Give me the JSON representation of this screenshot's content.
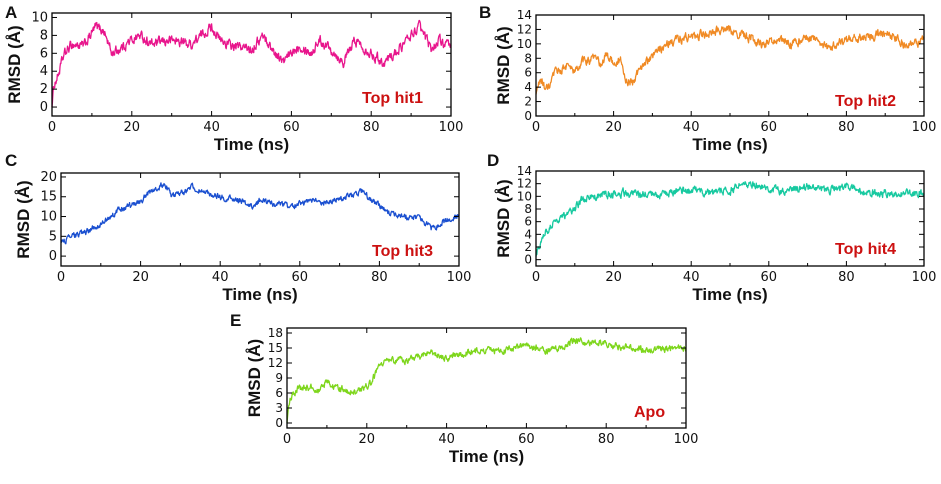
{
  "chart_data": [
    {
      "panel": "A",
      "type": "line",
      "series_label": "Top hit1",
      "color": "#e8158c",
      "label_color": "#cc1111",
      "xlabel": "Time (ns)",
      "ylabel": "RMSD (Å)",
      "xlim": [
        0,
        100
      ],
      "ylim": [
        -1,
        10.5
      ],
      "xticks": [
        0,
        20,
        40,
        60,
        80,
        100
      ],
      "yticks": [
        0,
        2,
        4,
        6,
        8,
        10
      ],
      "keypoints": [
        [
          0,
          0
        ],
        [
          0.5,
          2.5
        ],
        [
          1.5,
          3.5
        ],
        [
          3,
          5.8
        ],
        [
          5,
          7
        ],
        [
          8,
          6.8
        ],
        [
          11,
          9
        ],
        [
          13,
          8.5
        ],
        [
          15,
          6
        ],
        [
          17,
          6.5
        ],
        [
          20,
          7.5
        ],
        [
          22,
          8
        ],
        [
          25,
          7
        ],
        [
          30,
          7.5
        ],
        [
          35,
          7
        ],
        [
          40,
          9
        ],
        [
          42,
          7.5
        ],
        [
          45,
          6.8
        ],
        [
          50,
          6.5
        ],
        [
          53,
          8
        ],
        [
          55,
          6.5
        ],
        [
          58,
          5
        ],
        [
          62,
          7
        ],
        [
          65,
          6
        ],
        [
          67,
          7.5
        ],
        [
          70,
          6.5
        ],
        [
          73,
          5
        ],
        [
          76,
          7.5
        ],
        [
          80,
          6
        ],
        [
          83,
          5
        ],
        [
          86,
          6
        ],
        [
          90,
          8
        ],
        [
          92,
          9
        ],
        [
          95,
          6.5
        ],
        [
          97,
          7.5
        ],
        [
          100,
          6.5
        ]
      ],
      "noise": 0.45
    },
    {
      "panel": "B",
      "type": "line",
      "series_label": "Top hit2",
      "color": "#f08a24",
      "label_color": "#cc1111",
      "xlabel": "Time (ns)",
      "ylabel": "RMSD (Å)",
      "xlim": [
        0,
        100
      ],
      "ylim": [
        0,
        14
      ],
      "xticks": [
        0,
        20,
        40,
        60,
        80,
        100
      ],
      "yticks": [
        0,
        2,
        4,
        6,
        8,
        10,
        12,
        14
      ],
      "keypoints": [
        [
          0,
          3
        ],
        [
          1,
          5
        ],
        [
          3,
          3.5
        ],
        [
          5,
          6
        ],
        [
          8,
          7
        ],
        [
          10,
          6
        ],
        [
          12,
          7.5
        ],
        [
          15,
          8
        ],
        [
          17,
          7
        ],
        [
          18,
          8.5
        ],
        [
          20,
          7.5
        ],
        [
          22,
          7.5
        ],
        [
          23,
          5
        ],
        [
          25,
          4.5
        ],
        [
          27,
          7
        ],
        [
          30,
          8
        ],
        [
          33,
          10
        ],
        [
          36,
          10.5
        ],
        [
          40,
          11
        ],
        [
          45,
          11.5
        ],
        [
          50,
          12
        ],
        [
          54,
          11
        ],
        [
          58,
          10
        ],
        [
          62,
          10.5
        ],
        [
          66,
          10
        ],
        [
          72,
          11
        ],
        [
          75,
          9.5
        ],
        [
          80,
          10.5
        ],
        [
          85,
          11
        ],
        [
          90,
          11.5
        ],
        [
          95,
          10
        ],
        [
          100,
          10.5
        ]
      ],
      "noise": 0.5
    },
    {
      "panel": "C",
      "type": "line",
      "series_label": "Top hit3",
      "color": "#1a4fd0",
      "label_color": "#cc1111",
      "xlabel": "Time (ns)",
      "ylabel": "RMSD (Å)",
      "xlim": [
        0,
        100
      ],
      "ylim": [
        -2.5,
        21
      ],
      "xticks": [
        0,
        20,
        40,
        60,
        80,
        100
      ],
      "yticks": [
        0,
        5,
        10,
        15,
        20
      ],
      "keypoints": [
        [
          0,
          3.5
        ],
        [
          3,
          5
        ],
        [
          6,
          6
        ],
        [
          10,
          8
        ],
        [
          15,
          12
        ],
        [
          20,
          14
        ],
        [
          24,
          17.5
        ],
        [
          26,
          18
        ],
        [
          28,
          15
        ],
        [
          30,
          16
        ],
        [
          33,
          17.5
        ],
        [
          36,
          16
        ],
        [
          40,
          15
        ],
        [
          45,
          14
        ],
        [
          48,
          12.5
        ],
        [
          50,
          14
        ],
        [
          55,
          13
        ],
        [
          58,
          12.5
        ],
        [
          62,
          14
        ],
        [
          65,
          13.5
        ],
        [
          70,
          14.5
        ],
        [
          74,
          15.5
        ],
        [
          76,
          16.5
        ],
        [
          78,
          14
        ],
        [
          82,
          11
        ],
        [
          86,
          10
        ],
        [
          90,
          9.5
        ],
        [
          93,
          7
        ],
        [
          95,
          8
        ],
        [
          97,
          9
        ],
        [
          100,
          10
        ]
      ],
      "noise": 0.6
    },
    {
      "panel": "D",
      "type": "line",
      "series_label": "Top hit4",
      "color": "#17c9a0",
      "label_color": "#cc1111",
      "xlabel": "Time (ns)",
      "ylabel": "RMSD (Å)",
      "xlim": [
        0,
        100
      ],
      "ylim": [
        -1,
        14
      ],
      "xticks": [
        0,
        20,
        40,
        60,
        80,
        100
      ],
      "yticks": [
        0,
        2,
        4,
        6,
        8,
        10,
        12,
        14
      ],
      "keypoints": [
        [
          0,
          0.5
        ],
        [
          0.5,
          2
        ],
        [
          2,
          4
        ],
        [
          4,
          5.5
        ],
        [
          6,
          6.5
        ],
        [
          8,
          7
        ],
        [
          10,
          8
        ],
        [
          12,
          9.5
        ],
        [
          15,
          10
        ],
        [
          20,
          10.5
        ],
        [
          25,
          10.5
        ],
        [
          30,
          10
        ],
        [
          35,
          10.5
        ],
        [
          40,
          11
        ],
        [
          45,
          10.5
        ],
        [
          50,
          11
        ],
        [
          55,
          12
        ],
        [
          60,
          11
        ],
        [
          65,
          11
        ],
        [
          70,
          11.5
        ],
        [
          75,
          11
        ],
        [
          80,
          11.5
        ],
        [
          85,
          10.5
        ],
        [
          90,
          10.5
        ],
        [
          95,
          10.5
        ],
        [
          100,
          10.5
        ]
      ],
      "noise": 0.5
    },
    {
      "panel": "E",
      "type": "line",
      "series_label": "Apo",
      "color": "#7ed61c",
      "label_color": "#cc1111",
      "xlabel": "Time (ns)",
      "ylabel": "RMSD (Å)",
      "xlim": [
        0,
        100
      ],
      "ylim": [
        -1,
        19
      ],
      "xticks": [
        0,
        20,
        40,
        60,
        80,
        100
      ],
      "yticks": [
        0,
        3,
        6,
        9,
        12,
        15,
        18
      ],
      "keypoints": [
        [
          0,
          0
        ],
        [
          0.5,
          4
        ],
        [
          1.5,
          6
        ],
        [
          3,
          7
        ],
        [
          6,
          7
        ],
        [
          8,
          6.5
        ],
        [
          10,
          8.5
        ],
        [
          12,
          7
        ],
        [
          15,
          6.5
        ],
        [
          17,
          6
        ],
        [
          19,
          7
        ],
        [
          21,
          8
        ],
        [
          23,
          11.5
        ],
        [
          25,
          12.5
        ],
        [
          30,
          12.5
        ],
        [
          35,
          14
        ],
        [
          40,
          13
        ],
        [
          45,
          14
        ],
        [
          50,
          14.5
        ],
        [
          55,
          14.5
        ],
        [
          60,
          15.5
        ],
        [
          65,
          14.5
        ],
        [
          68,
          15
        ],
        [
          72,
          16.5
        ],
        [
          76,
          16
        ],
        [
          80,
          16
        ],
        [
          85,
          15
        ],
        [
          90,
          14.5
        ],
        [
          95,
          15
        ],
        [
          100,
          15
        ]
      ],
      "noise": 0.55
    }
  ]
}
